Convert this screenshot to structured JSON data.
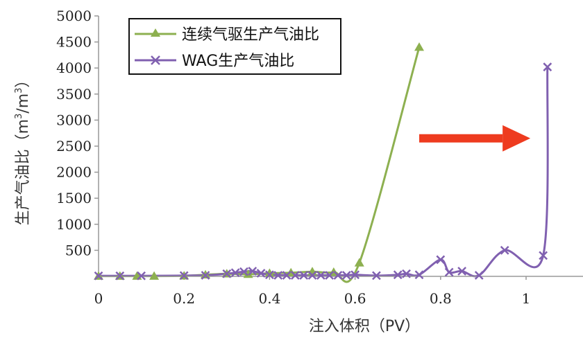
{
  "chart_data": {
    "type": "line",
    "xlabel": "注入体积（PV）",
    "ylabel": "生产气油比（m3/m3）",
    "ylabel_parts": [
      "生产气油比（m",
      "3",
      "/m",
      "3",
      "）"
    ],
    "xlim": [
      0,
      1.12
    ],
    "ylim": [
      0,
      5000
    ],
    "x_ticks": [
      0,
      0.2,
      0.4,
      0.6,
      0.8,
      1
    ],
    "x_tick_labels": [
      "0",
      "0.2",
      "0.4",
      "0.6",
      "0.8",
      "1"
    ],
    "y_ticks": [
      500,
      1000,
      1500,
      2000,
      2500,
      3000,
      3500,
      4000,
      4500,
      5000
    ],
    "y_tick_labels": [
      "500",
      "1000",
      "1500",
      "2000",
      "2500",
      "3000",
      "3500",
      "4000",
      "4500",
      "5000"
    ],
    "grid": false,
    "legend_position": "top-left",
    "series": [
      {
        "name": "连续气驱生产气油比",
        "color": "#8db050",
        "marker": "triangle",
        "x": [
          0,
          0.05,
          0.09,
          0.13,
          0.2,
          0.25,
          0.3,
          0.35,
          0.4,
          0.45,
          0.5,
          0.55,
          0.61,
          0.75
        ],
        "y": [
          5,
          5,
          5,
          5,
          10,
          30,
          50,
          40,
          60,
          70,
          90,
          80,
          260,
          4400
        ]
      },
      {
        "name": "WAG生产气油比",
        "color": "#8060b0",
        "marker": "x",
        "x": [
          0,
          0.05,
          0.1,
          0.2,
          0.25,
          0.3,
          0.32,
          0.34,
          0.36,
          0.38,
          0.4,
          0.42,
          0.44,
          0.46,
          0.48,
          0.5,
          0.52,
          0.54,
          0.56,
          0.58,
          0.6,
          0.65,
          0.7,
          0.72,
          0.75,
          0.8,
          0.82,
          0.85,
          0.89,
          0.95,
          1.04,
          1.05
        ],
        "y": [
          10,
          10,
          10,
          15,
          20,
          50,
          70,
          90,
          100,
          60,
          30,
          20,
          20,
          20,
          20,
          20,
          20,
          20,
          20,
          20,
          30,
          15,
          30,
          50,
          30,
          320,
          80,
          100,
          20,
          500,
          400,
          4020
        ]
      }
    ],
    "annotations": [
      {
        "type": "arrow",
        "color": "#ee3b1f",
        "x_start": 0.75,
        "x_end": 1.01,
        "y": 2650
      }
    ]
  }
}
